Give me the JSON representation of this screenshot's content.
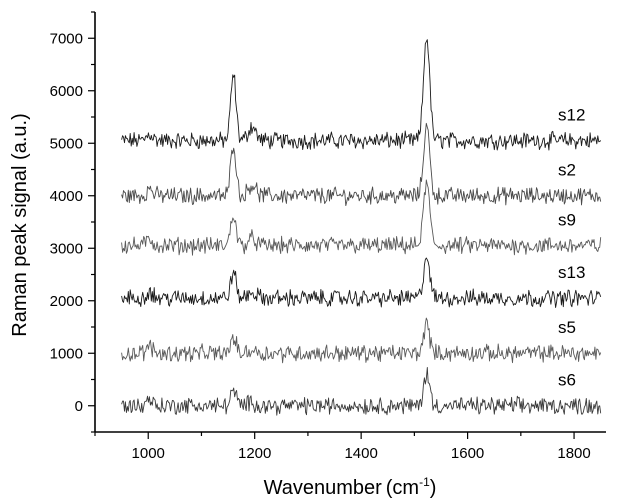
{
  "chart_data": {
    "type": "line",
    "xlabel": "Wavenumber",
    "xlabel_unit": "(cm",
    "xlabel_unit_sup": "-1",
    "xlabel_unit_close": ")",
    "ylabel": "Raman peak signal (a.u.)",
    "xlim": [
      900,
      1860
    ],
    "ylim": [
      -500,
      7500
    ],
    "x_ticks": [
      1000,
      1200,
      1400,
      1600,
      1800
    ],
    "x_tick_labels": [
      "1000",
      "1200",
      "1400",
      "1600",
      "1800"
    ],
    "y_ticks": [
      0,
      1000,
      2000,
      3000,
      4000,
      5000,
      6000,
      7000
    ],
    "y_tick_labels": [
      "0",
      "1000",
      "2000",
      "3000",
      "4000",
      "5000",
      "6000",
      "7000"
    ],
    "x_range": [
      950,
      1850
    ],
    "peak_positions": [
      1160,
      1523
    ],
    "grid": false,
    "legend": "inline-right",
    "series": [
      {
        "name": "s12",
        "baseline": 5050,
        "peak_heights": [
          1250,
          2000
        ],
        "color": "#1a1a1a"
      },
      {
        "name": "s2",
        "baseline": 4000,
        "peak_heights": [
          1000,
          1350
        ],
        "color": "#4a4a4a"
      },
      {
        "name": "s9",
        "baseline": 3050,
        "peak_heights": [
          600,
          1200
        ],
        "color": "#5a5a5a"
      },
      {
        "name": "s13",
        "baseline": 2050,
        "peak_heights": [
          500,
          800
        ],
        "color": "#1a1a1a"
      },
      {
        "name": "s5",
        "baseline": 1000,
        "peak_heights": [
          300,
          550
        ],
        "color": "#5a5a5a"
      },
      {
        "name": "s6",
        "baseline": 0,
        "peak_heights": [
          300,
          600
        ],
        "color": "#3a3a3a"
      }
    ]
  }
}
